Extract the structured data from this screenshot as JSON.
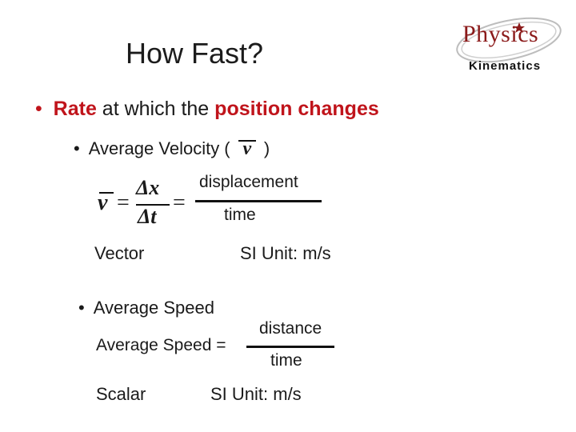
{
  "title": "How Fast?",
  "logo": {
    "word": "Physics",
    "subtitle": "Kinematics"
  },
  "bullet1": {
    "part1": "Rate",
    "part2": " at which the ",
    "part3": "position changes"
  },
  "velocity": {
    "heading_pre": "Average Velocity (",
    "heading_post": ")",
    "symbol": "v",
    "formula": {
      "lhs": "v",
      "equals": "=",
      "num": "Δx",
      "den": "Δt",
      "equals2": "="
    },
    "numerator": "displacement",
    "denominator": "time",
    "type_label": "Vector",
    "unit_label": "SI Unit: m/s"
  },
  "speed": {
    "heading": "Average Speed",
    "lhs": "Average Speed  =",
    "numerator": "distance",
    "denominator": "time",
    "type_label": "Scalar",
    "unit_label": "SI Unit: m/s"
  }
}
